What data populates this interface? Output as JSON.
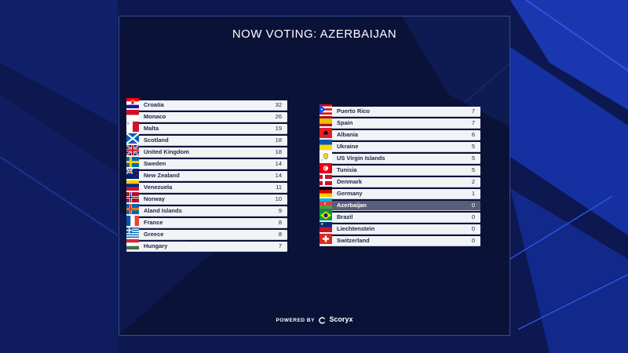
{
  "title": "NOW VOTING: AZERBAIJAN",
  "footer": {
    "powered_by": "POWERED BY",
    "brand": "Scoryx"
  },
  "icons": {
    "brand_logo": "scoryx-logo-icon"
  },
  "colors": {
    "highlight": "#5b5e78",
    "row": "#f2f3f7",
    "panel": "#0a1238"
  },
  "left_column": [
    {
      "country": "Croatia",
      "points": "32",
      "flag": "croatia"
    },
    {
      "country": "Monaco",
      "points": "26",
      "flag": "monaco"
    },
    {
      "country": "Malta",
      "points": "19",
      "flag": "malta"
    },
    {
      "country": "Scotland",
      "points": "18",
      "flag": "scotland"
    },
    {
      "country": "United Kingdom",
      "points": "18",
      "flag": "uk"
    },
    {
      "country": "Sweden",
      "points": "14",
      "flag": "sweden"
    },
    {
      "country": "New Zealand",
      "points": "14",
      "flag": "nz"
    },
    {
      "country": "Venezuela",
      "points": "11",
      "flag": "venezuela"
    },
    {
      "country": "Norway",
      "points": "10",
      "flag": "norway"
    },
    {
      "country": "Aland Islands",
      "points": "9",
      "flag": "aland"
    },
    {
      "country": "France",
      "points": "8",
      "flag": "france"
    },
    {
      "country": "Greece",
      "points": "8",
      "flag": "greece"
    },
    {
      "country": "Hungary",
      "points": "7",
      "flag": "hungary"
    }
  ],
  "right_column": [
    {
      "country": "Puerto Rico",
      "points": "7",
      "flag": "puertorico"
    },
    {
      "country": "Spain",
      "points": "7",
      "flag": "spain"
    },
    {
      "country": "Albania",
      "points": "6",
      "flag": "albania"
    },
    {
      "country": "Ukraine",
      "points": "5",
      "flag": "ukraine"
    },
    {
      "country": "US Virgin Islands",
      "points": "5",
      "flag": "usvi"
    },
    {
      "country": "Tunisia",
      "points": "5",
      "flag": "tunisia"
    },
    {
      "country": "Denmark",
      "points": "2",
      "flag": "denmark"
    },
    {
      "country": "Germany",
      "points": "1",
      "flag": "germany"
    },
    {
      "country": "Azerbaijan",
      "points": "0",
      "flag": "azerbaijan",
      "highlight": true
    },
    {
      "country": "Brazil",
      "points": "0",
      "flag": "brazil"
    },
    {
      "country": "Liechtenstein",
      "points": "0",
      "flag": "liechtenstein"
    },
    {
      "country": "Switzerland",
      "points": "0",
      "flag": "switzerland"
    }
  ]
}
